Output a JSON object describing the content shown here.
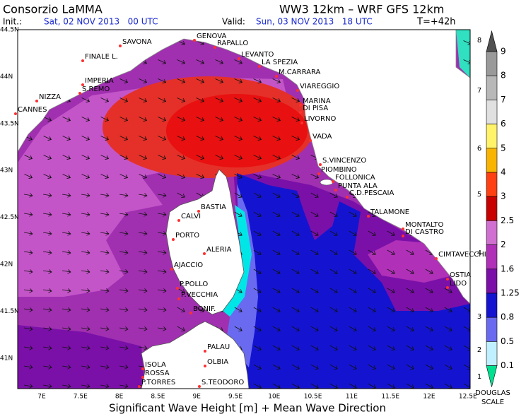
{
  "header": {
    "title": "Consorzio LaMMA",
    "model": "WW3 12km  –  WRF GFS 12km",
    "init_label": "Init.:",
    "init": "Sat, 02 NOV 2013   00 UTC",
    "valid_label": "Valid:",
    "valid": "Sun, 03 NOV 2013   18 UTC",
    "lead": "T=+42h"
  },
  "lat_labels": [
    "44.5N",
    "44N",
    "43.5N",
    "43N",
    "42.5N",
    "42N",
    "41.5N",
    "41N"
  ],
  "lon_labels": [
    "7E",
    "7.5E",
    "8E",
    "8.5E",
    "9E",
    "9.5E",
    "10E",
    "10.5E",
    "11E",
    "11.5E",
    "12E",
    "12.5E"
  ],
  "places": [
    {
      "label": "SAVONA"
    },
    {
      "label": "GENOVA"
    },
    {
      "label": "RAPALLO"
    },
    {
      "label": "FINALE L."
    },
    {
      "label": "LEVANTO"
    },
    {
      "label": "LA SPEZIA"
    },
    {
      "label": "IMPERIA"
    },
    {
      "label": "S.REMO"
    },
    {
      "label": "M.CARRARA"
    },
    {
      "label": "VIAREGGIO"
    },
    {
      "label": "NIZZA"
    },
    {
      "label": "CANNES"
    },
    {
      "label": "MARINA"
    },
    {
      "label": "DI PISA"
    },
    {
      "label": "LIVORNO"
    },
    {
      "label": "VADA"
    },
    {
      "label": "S.VINCENZO"
    },
    {
      "label": "PIOMBINO"
    },
    {
      "label": "FOLLONICA"
    },
    {
      "label": "PUNTA ALA"
    },
    {
      "label": "C.D.PESCAIA"
    },
    {
      "label": "BASTIA"
    },
    {
      "label": "CALVI"
    },
    {
      "label": "TALAMONE"
    },
    {
      "label": "MONTALTO"
    },
    {
      "label": "DI CASTRO"
    },
    {
      "label": "PORTO"
    },
    {
      "label": "ALERIA"
    },
    {
      "label": "CIMTAVECCHIA"
    },
    {
      "label": "AJACCIO"
    },
    {
      "label": "OSTIA"
    },
    {
      "label": "LIDO"
    },
    {
      "label": "P.POLLO"
    },
    {
      "label": "P.VECCHIA"
    },
    {
      "label": "BONIF."
    },
    {
      "label": "PALAU"
    },
    {
      "label": "OLBIA"
    },
    {
      "label": "ISOLA"
    },
    {
      "label": "ROSSA"
    },
    {
      "label": "P.TORRES"
    },
    {
      "label": "S.TEODORO"
    }
  ],
  "colorbar": {
    "labels": [
      "9",
      "8",
      "7",
      "6",
      "5",
      "4",
      "3",
      "2.5",
      "2",
      "1.6",
      "1.25",
      "0.8",
      "0.5",
      "0.1"
    ],
    "douglas": [
      "8",
      "7",
      "6",
      "5",
      "4",
      "3",
      "2",
      "1"
    ],
    "douglas_title": [
      "DOUGLAS",
      "SCALE"
    ]
  },
  "footer": "Significant Wave Height [m] + Mean Wave Direction"
}
